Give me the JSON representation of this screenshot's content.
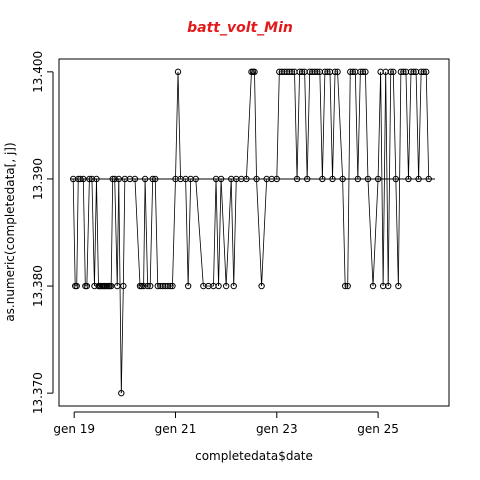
{
  "chart_data": {
    "type": "scatter",
    "title": "batt_volt_Min",
    "xlabel": "completedata$date",
    "ylabel": "as.numeric(completedata[, j])",
    "x_tick_labels": [
      "gen 19",
      "gen 21",
      "gen 23",
      "gen 25"
    ],
    "x_tick_values": [
      19,
      21,
      23,
      25
    ],
    "xlim": [
      18.7,
      26.4
    ],
    "y_tick_labels": [
      "13.370",
      "13.380",
      "13.390",
      "13.400"
    ],
    "y_tick_values": [
      13.37,
      13.38,
      13.39,
      13.4
    ],
    "ylim": [
      13.3688,
      13.4012
    ],
    "baseline": 13.39,
    "connect_points": true,
    "grid": false,
    "legend": "none",
    "marker": "open-circle",
    "colors": {
      "title": "#e31a1c",
      "points": "#000000",
      "lines": "#000000",
      "axes": "#000000"
    },
    "points": [
      [
        18.98,
        13.39
      ],
      [
        19.02,
        13.38
      ],
      [
        19.05,
        13.38
      ],
      [
        19.08,
        13.39
      ],
      [
        19.12,
        13.39
      ],
      [
        19.18,
        13.39
      ],
      [
        19.22,
        13.38
      ],
      [
        19.25,
        13.38
      ],
      [
        19.3,
        13.39
      ],
      [
        19.35,
        13.39
      ],
      [
        19.4,
        13.38
      ],
      [
        19.44,
        13.39
      ],
      [
        19.48,
        13.38
      ],
      [
        19.5,
        13.38
      ],
      [
        19.52,
        13.38
      ],
      [
        19.55,
        13.38
      ],
      [
        19.57,
        13.38
      ],
      [
        19.6,
        13.38
      ],
      [
        19.62,
        13.38
      ],
      [
        19.65,
        13.38
      ],
      [
        19.68,
        13.38
      ],
      [
        19.7,
        13.38
      ],
      [
        19.73,
        13.38
      ],
      [
        19.76,
        13.39
      ],
      [
        19.8,
        13.39
      ],
      [
        19.85,
        13.38
      ],
      [
        19.88,
        13.39
      ],
      [
        19.93,
        13.37
      ],
      [
        19.97,
        13.38
      ],
      [
        20.0,
        13.39
      ],
      [
        20.1,
        13.39
      ],
      [
        20.2,
        13.39
      ],
      [
        20.3,
        13.38
      ],
      [
        20.33,
        13.38
      ],
      [
        20.37,
        13.38
      ],
      [
        20.4,
        13.39
      ],
      [
        20.45,
        13.38
      ],
      [
        20.5,
        13.38
      ],
      [
        20.55,
        13.39
      ],
      [
        20.6,
        13.39
      ],
      [
        20.65,
        13.38
      ],
      [
        20.7,
        13.38
      ],
      [
        20.75,
        13.38
      ],
      [
        20.8,
        13.38
      ],
      [
        20.85,
        13.38
      ],
      [
        20.9,
        13.38
      ],
      [
        20.94,
        13.38
      ],
      [
        21.0,
        13.39
      ],
      [
        21.05,
        13.4
      ],
      [
        21.1,
        13.39
      ],
      [
        21.2,
        13.39
      ],
      [
        21.25,
        13.38
      ],
      [
        21.3,
        13.39
      ],
      [
        21.4,
        13.39
      ],
      [
        21.55,
        13.38
      ],
      [
        21.65,
        13.38
      ],
      [
        21.75,
        13.38
      ],
      [
        21.8,
        13.39
      ],
      [
        21.85,
        13.38
      ],
      [
        21.9,
        13.39
      ],
      [
        22.0,
        13.38
      ],
      [
        22.1,
        13.39
      ],
      [
        22.15,
        13.38
      ],
      [
        22.2,
        13.39
      ],
      [
        22.3,
        13.39
      ],
      [
        22.4,
        13.39
      ],
      [
        22.5,
        13.4
      ],
      [
        22.53,
        13.4
      ],
      [
        22.56,
        13.4
      ],
      [
        22.6,
        13.39
      ],
      [
        22.7,
        13.38
      ],
      [
        22.8,
        13.39
      ],
      [
        22.9,
        13.39
      ],
      [
        23.0,
        13.39
      ],
      [
        23.05,
        13.4
      ],
      [
        23.1,
        13.4
      ],
      [
        23.15,
        13.4
      ],
      [
        23.2,
        13.4
      ],
      [
        23.25,
        13.4
      ],
      [
        23.3,
        13.4
      ],
      [
        23.35,
        13.4
      ],
      [
        23.4,
        13.39
      ],
      [
        23.45,
        13.4
      ],
      [
        23.5,
        13.4
      ],
      [
        23.55,
        13.4
      ],
      [
        23.6,
        13.39
      ],
      [
        23.65,
        13.4
      ],
      [
        23.7,
        13.4
      ],
      [
        23.75,
        13.4
      ],
      [
        23.8,
        13.4
      ],
      [
        23.85,
        13.4
      ],
      [
        23.9,
        13.39
      ],
      [
        23.95,
        13.4
      ],
      [
        24.0,
        13.4
      ],
      [
        24.05,
        13.4
      ],
      [
        24.1,
        13.39
      ],
      [
        24.15,
        13.4
      ],
      [
        24.2,
        13.4
      ],
      [
        24.3,
        13.39
      ],
      [
        24.35,
        13.38
      ],
      [
        24.4,
        13.38
      ],
      [
        24.45,
        13.4
      ],
      [
        24.5,
        13.4
      ],
      [
        24.55,
        13.4
      ],
      [
        24.6,
        13.39
      ],
      [
        24.65,
        13.4
      ],
      [
        24.7,
        13.4
      ],
      [
        24.75,
        13.4
      ],
      [
        24.8,
        13.39
      ],
      [
        24.9,
        13.38
      ],
      [
        25.0,
        13.39
      ],
      [
        25.05,
        13.4
      ],
      [
        25.1,
        13.38
      ],
      [
        25.15,
        13.4
      ],
      [
        25.2,
        13.38
      ],
      [
        25.25,
        13.4
      ],
      [
        25.3,
        13.4
      ],
      [
        25.35,
        13.39
      ],
      [
        25.4,
        13.38
      ],
      [
        25.45,
        13.4
      ],
      [
        25.5,
        13.4
      ],
      [
        25.55,
        13.4
      ],
      [
        25.6,
        13.39
      ],
      [
        25.65,
        13.4
      ],
      [
        25.7,
        13.4
      ],
      [
        25.75,
        13.4
      ],
      [
        25.8,
        13.39
      ],
      [
        25.85,
        13.4
      ],
      [
        25.9,
        13.4
      ],
      [
        25.95,
        13.4
      ],
      [
        26.0,
        13.39
      ]
    ]
  }
}
